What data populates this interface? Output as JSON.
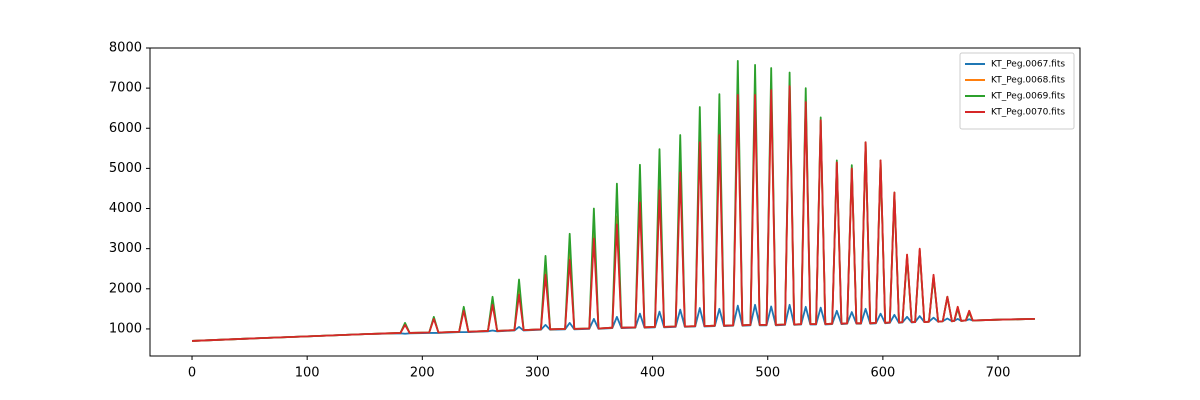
{
  "chart_data": {
    "type": "line",
    "x": [
      0,
      50,
      100,
      150,
      181,
      185,
      189,
      206,
      210,
      214,
      232,
      236,
      240,
      257,
      261,
      265,
      280,
      284,
      288,
      303,
      307,
      311,
      324,
      328,
      332,
      345,
      349,
      353,
      365,
      369,
      373,
      385,
      389,
      393,
      402,
      406,
      410,
      420,
      424,
      428,
      437,
      441,
      445,
      454,
      458,
      462,
      470,
      474,
      478,
      485,
      489,
      493,
      499,
      503,
      507,
      515,
      519,
      523,
      529,
      533,
      537,
      542,
      546,
      550,
      556,
      560,
      564,
      569,
      573,
      577,
      581,
      585,
      589,
      594,
      598,
      602,
      606,
      610,
      614,
      617,
      621,
      625,
      628,
      632,
      636,
      640,
      644,
      648,
      652,
      656,
      660,
      662,
      665,
      668,
      672,
      675,
      678,
      700,
      732
    ],
    "series": [
      {
        "name": "KT_Peg.0067.fits",
        "color": "#1f77b4",
        "values": [
          700,
          760,
          815,
          870,
          890,
          880,
          890,
          900,
          900,
          900,
          920,
          920,
          920,
          940,
          960,
          940,
          960,
          1050,
          960,
          980,
          1100,
          980,
          990,
          1150,
          990,
          1000,
          1250,
          1000,
          1020,
          1300,
          1020,
          1030,
          1380,
          1030,
          1040,
          1430,
          1040,
          1050,
          1480,
          1050,
          1060,
          1520,
          1060,
          1070,
          1500,
          1070,
          1080,
          1580,
          1080,
          1090,
          1600,
          1090,
          1090,
          1560,
          1090,
          1100,
          1600,
          1100,
          1110,
          1550,
          1110,
          1110,
          1530,
          1110,
          1120,
          1450,
          1120,
          1130,
          1420,
          1130,
          1130,
          1500,
          1130,
          1140,
          1380,
          1140,
          1150,
          1350,
          1150,
          1160,
          1300,
          1160,
          1170,
          1320,
          1170,
          1180,
          1280,
          1180,
          1190,
          1260,
          1190,
          1200,
          1250,
          1200,
          1210,
          1240,
          1210,
          1230,
          1250
        ]
      },
      {
        "name": "KT_Peg.0068.fits",
        "color": "#ff7f0e",
        "values": [
          700,
          760,
          815,
          870,
          900,
          1120,
          900,
          910,
          1270,
          910,
          930,
          1500,
          930,
          950,
          1700,
          950,
          970,
          2000,
          970,
          990,
          2500,
          990,
          1000,
          2900,
          1000,
          1010,
          3400,
          1010,
          1030,
          3800,
          1030,
          1040,
          4350,
          1040,
          1050,
          4650,
          1050,
          1060,
          5100,
          1060,
          1070,
          5800,
          1070,
          1080,
          6000,
          1080,
          1090,
          6900,
          1090,
          1100,
          6900,
          1100,
          1100,
          7000,
          1100,
          1110,
          7100,
          1110,
          1120,
          6700,
          1120,
          1120,
          6200,
          1120,
          1130,
          5150,
          1130,
          1140,
          5000,
          1140,
          1140,
          5650,
          1140,
          1150,
          5200,
          1150,
          1160,
          4400,
          1160,
          1170,
          2850,
          1170,
          1170,
          2980,
          1170,
          1180,
          2330,
          1180,
          1190,
          1800,
          1190,
          1200,
          1550,
          1200,
          1210,
          1450,
          1210,
          1230,
          1250
        ]
      },
      {
        "name": "KT_Peg.0069.fits",
        "color": "#2ca02c",
        "values": [
          700,
          760,
          815,
          870,
          900,
          1150,
          900,
          910,
          1300,
          910,
          930,
          1550,
          930,
          950,
          1800,
          950,
          970,
          2230,
          970,
          990,
          2820,
          990,
          1000,
          3370,
          1000,
          1010,
          4000,
          1010,
          1030,
          4620,
          1030,
          1040,
          5090,
          1040,
          1050,
          5480,
          1050,
          1060,
          5830,
          1060,
          1070,
          6530,
          1070,
          1080,
          6850,
          1080,
          1090,
          7680,
          1090,
          1100,
          7580,
          1100,
          1100,
          7500,
          1100,
          1110,
          7390,
          1110,
          1120,
          7000,
          1120,
          1120,
          6270,
          1120,
          1130,
          5200,
          1130,
          1140,
          5080,
          1140,
          1140,
          5650,
          1140,
          1150,
          5200,
          1150,
          1160,
          4400,
          1160,
          1170,
          2800,
          1170,
          1170,
          2950,
          1170,
          1180,
          2300,
          1180,
          1190,
          1800,
          1190,
          1200,
          1500,
          1200,
          1210,
          1400,
          1210,
          1230,
          1250
        ]
      },
      {
        "name": "KT_Peg.0070.fits",
        "color": "#d62728",
        "values": [
          700,
          760,
          815,
          870,
          900,
          1100,
          900,
          910,
          1250,
          910,
          930,
          1450,
          930,
          950,
          1600,
          950,
          970,
          1850,
          970,
          990,
          2350,
          990,
          1000,
          2720,
          1000,
          1010,
          3250,
          1010,
          1030,
          3600,
          1030,
          1040,
          4150,
          1040,
          1050,
          4450,
          1050,
          1060,
          4900,
          1060,
          1070,
          5650,
          1070,
          1080,
          5830,
          1080,
          1090,
          6830,
          1090,
          1100,
          6830,
          1100,
          1100,
          6950,
          1100,
          1110,
          7050,
          1110,
          1120,
          6650,
          1120,
          1120,
          6200,
          1120,
          1130,
          5150,
          1130,
          1140,
          5000,
          1140,
          1140,
          5650,
          1140,
          1150,
          5200,
          1150,
          1160,
          4400,
          1160,
          1170,
          2850,
          1170,
          1170,
          3000,
          1170,
          1180,
          2350,
          1180,
          1190,
          1800,
          1190,
          1200,
          1550,
          1200,
          1210,
          1450,
          1210,
          1230,
          1250
        ]
      }
    ],
    "xlim": [
      -36.5,
      771.2
    ],
    "ylim": [
      325,
      8000
    ],
    "xticks": [
      0,
      100,
      200,
      300,
      400,
      500,
      600,
      700
    ],
    "yticks": [
      1000,
      2000,
      3000,
      4000,
      5000,
      6000,
      7000,
      8000
    ],
    "legend": "upper right"
  }
}
